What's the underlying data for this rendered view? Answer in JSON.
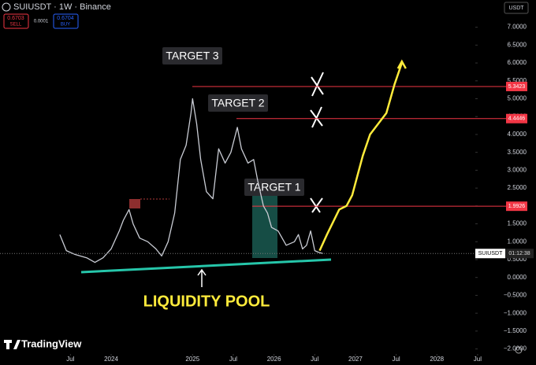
{
  "header": {
    "symbol": "SUIUSDT · 1W · Binance",
    "sell_price": "0.6703",
    "sell_label": "SELL",
    "spread": "0.0001",
    "buy_price": "0.6704",
    "buy_label": "BUY",
    "currency": "USDT",
    "brand": "TradingView"
  },
  "chart_data": {
    "type": "line",
    "x": [
      2023.37,
      2023.45,
      2023.55,
      2023.7,
      2023.8,
      2023.9,
      2024.0,
      2024.1,
      2024.15,
      2024.22,
      2024.27,
      2024.35,
      2024.45,
      2024.55,
      2024.62,
      2024.7,
      2024.78,
      2024.85,
      2024.92,
      2024.98,
      2025.0,
      2025.05,
      2025.1,
      2025.17,
      2025.25,
      2025.32,
      2025.4,
      2025.47,
      2025.55,
      2025.6,
      2025.68,
      2025.75,
      2025.8,
      2025.87,
      2025.92,
      2025.97,
      2026.05,
      2026.15,
      2026.25,
      2026.3,
      2026.35,
      2026.4,
      2026.45,
      2026.5,
      2026.55,
      2026.6
    ],
    "series": [
      {
        "color": "#c9ccd4",
        "values": [
          1.2,
          0.75,
          0.65,
          0.55,
          0.42,
          0.55,
          0.8,
          1.3,
          1.6,
          1.9,
          1.5,
          1.1,
          1.0,
          0.8,
          0.6,
          1.0,
          1.8,
          3.3,
          3.7,
          4.6,
          5.0,
          4.3,
          3.3,
          2.4,
          2.2,
          3.6,
          3.2,
          3.5,
          4.2,
          3.6,
          3.2,
          3.3,
          2.7,
          2.0,
          1.8,
          1.4,
          1.3,
          0.9,
          1.0,
          1.2,
          0.8,
          0.9,
          1.3,
          0.75,
          0.7,
          0.67
        ]
      }
    ],
    "projection": {
      "color": "#ffeb3b",
      "x": [
        2026.56,
        2026.65,
        2026.8,
        2026.89,
        2026.96,
        2027.09,
        2027.18,
        2027.28,
        2027.38,
        2027.48,
        2027.57
      ],
      "values": [
        0.75,
        1.2,
        1.9,
        2.0,
        2.3,
        3.4,
        4.0,
        4.3,
        4.6,
        5.4,
        6.0
      ]
    },
    "levels": [
      {
        "value": 5.3423,
        "color": "#f23645"
      },
      {
        "value": 4.4446,
        "color": "#f23645"
      },
      {
        "value": 1.9926,
        "color": "#f23645"
      }
    ],
    "annotations": [
      "TARGET 3",
      "TARGET 2",
      "TARGET 1"
    ],
    "liquidity_label": "LIQUIDITY POOL",
    "price_tag": {
      "symbol": "SUIUSDT",
      "countdown": "01:12:38"
    },
    "xlim": [
      2022.635,
      2028.443
    ],
    "ylim": [
      -2.141,
      7.762
    ],
    "xticks": [
      {
        "value": 2023.5,
        "label": "Jul"
      },
      {
        "value": 2024,
        "label": "2024"
      },
      {
        "value": 2025,
        "label": "2025"
      },
      {
        "value": 2025.5,
        "label": "Jul"
      },
      {
        "value": 2026,
        "label": "2026"
      },
      {
        "value": 2026.5,
        "label": "Jul"
      },
      {
        "value": 2027,
        "label": "2027"
      },
      {
        "value": 2027.5,
        "label": "Jul"
      },
      {
        "value": 2028,
        "label": "2028"
      },
      {
        "value": 2028.5,
        "label": "Jul"
      }
    ],
    "yticks": [
      {
        "value": 7,
        "label": "7.0000"
      },
      {
        "value": 6.5,
        "label": "6.5000"
      },
      {
        "value": 6,
        "label": "6.0000"
      },
      {
        "value": 5.5,
        "label": "5.5000"
      },
      {
        "value": 5,
        "label": "5.0000"
      },
      {
        "value": 4.5,
        "label": "4.5000"
      },
      {
        "value": 4,
        "label": "4.0000"
      },
      {
        "value": 3.5,
        "label": "3.5000"
      },
      {
        "value": 3,
        "label": "3.0000"
      },
      {
        "value": 2.5,
        "label": "2.5000"
      },
      {
        "value": 2,
        "label": "2.0000"
      },
      {
        "value": 1.5,
        "label": "1.5000"
      },
      {
        "value": 1,
        "label": "1.0000"
      },
      {
        "value": 0.5,
        "label": "0.5000"
      },
      {
        "value": 0,
        "label": "0.0000"
      },
      {
        "value": -0.5,
        "label": "−0.5000"
      },
      {
        "value": -1,
        "label": "−1.0000"
      },
      {
        "value": -1.5,
        "label": "−1.5000"
      },
      {
        "value": -2,
        "label": "−2.0000"
      }
    ]
  }
}
